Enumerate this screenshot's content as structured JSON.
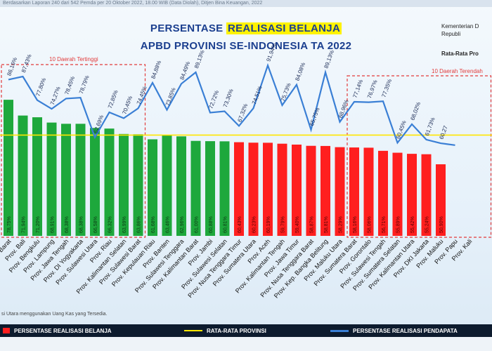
{
  "header": {
    "source_note": "Berdasarkan Laporan 240 dari 542 Pemda per 20 Oktober 2022, 18.00 WIB (Data Diolah), Ditjen Bina Keuangan, 2022",
    "title_prefix": "PERSENTASE ",
    "title_highlight": "REALISASI BELANJA",
    "title_line2": "APBD PROVINSI SE-INDONESIA TA 2022",
    "ministry_line1": "Kementerian D",
    "ministry_line2": "Republi",
    "rata_label": "Rata-Rata Pro"
  },
  "annotations": {
    "top10": "10 Daerah Tertinggi",
    "bottom10": "10 Daerah Terendah"
  },
  "footnote": "si Utara menggunakan Uang Kas yang Tersedia.",
  "legend": {
    "belanja": "PERSENTASE REALISASI BELANJA",
    "rata": "RATA-RATA PROVINSI",
    "pendapatan": "PERSENTASE REALISASI PENDAPATA"
  },
  "colors": {
    "bar_high": "#1ea83c",
    "bar_low": "#ff1f1f",
    "avg_line": "#ffe600",
    "pendapatan_line": "#3a7fd5",
    "dashed_box": "#e23b3b"
  },
  "chart_data": {
    "type": "bar",
    "categories": [
      "Barat",
      "Prov. Bali",
      "Prov. Bengkulu",
      "Prov. Lampung",
      "Prov. Jawa Tengah",
      "Prov. DI Yogyakarta",
      "Prov. Sulawesi Utara",
      "Prov. Riau",
      "Prov. Kalimantan Selatan",
      "Prov. Sulawesi Barat",
      "Prov. Kepulauan Riau",
      "Prov. Banten",
      "Prov. Sulawesi Tenggara",
      "Prov. Kalimantan Barat",
      "Prov. Jambi",
      "Prov. Sulawesi Selatan",
      "Prov. Nusa Tenggara Timur",
      "Prov. Sumatera Utara",
      "Prov. Aceh",
      "Prov. Kalimantan Tengah",
      "Prov. Jawa Timur",
      "Prov. Nusa Tenggara Barat",
      "Prov. Kep. Bangka Belitung",
      "Prov. Maluku Utara",
      "Prov. Sumatera Barat",
      "Prov. Gorontalo",
      "Prov. Sulawesi Tengah",
      "Prov. Sumatera Selatan",
      "Prov. Kalimantan Utara",
      "Prov. DKI Jakarta",
      "Prov. Maluku",
      "Prov. Papu",
      "Prov. Kali"
    ],
    "series": [
      {
        "name": "PERSENTASE REALISASI BELANJA",
        "values": [
          78.75,
          71.94,
          71.2,
          68.91,
          68.38,
          68.38,
          66.58,
          66.32,
          63.99,
          63.86,
          61.68,
          63.46,
          62.96,
          61.0,
          60.88,
          60.81,
          60.43,
          60.23,
          60.19,
          59.79,
          59.4,
          58.87,
          58.81,
          58.29,
          58.16,
          58.06,
          56.71,
          55.89,
          55.42,
          55.24,
          50.9,
          null,
          null
        ],
        "labels": [
          "78,75%",
          "71,94%",
          "71,20%",
          "68,91%",
          "68,38%",
          "68,38%",
          "66,58%",
          "66,32%",
          "63,99%",
          "63,86%",
          "61,68%",
          "63,46%",
          "62,96%",
          "61,00%",
          "60,88%",
          "60,81%",
          "60,43%",
          "60,23%",
          "60,19%",
          "59,79%",
          "59,40%",
          "58,87%",
          "58,81%",
          "58,29%",
          "58,16%",
          "58,06%",
          "56,71%",
          "55,89%",
          "55,42%",
          "55,24%",
          "50,90%",
          "",
          ""
        ]
      },
      {
        "name": "PERSENTASE REALISASI PENDAPATA",
        "values": [
          86.16,
          87.43,
          77.8,
          74.27,
          78.45,
          78.79,
          62.69,
          72.85,
          70.45,
          74.45,
          84.88,
          73.85,
          84.49,
          89.13,
          72.72,
          73.3,
          67.32,
          74.51,
          91.94,
          75.73,
          84.08,
          65.75,
          89.13,
          68.96,
          77.14,
          76.97,
          77.35,
          60.45,
          68.02,
          61.73,
          60.27,
          59.5,
          null
        ],
        "labels": [
          "86,16%",
          "87,43%",
          "77,80%",
          "74,27%",
          "78,45%",
          "78,79%",
          "62,69%",
          "72,85%",
          "70,45%",
          "74,45%",
          "84,88%",
          "73,85%",
          "84,49%",
          "89,13%",
          "72,72%",
          "73,30%",
          "67,32%",
          "74,51%",
          "91,94%",
          "75,73%",
          "84,08%",
          "65,75%",
          "89,13%",
          "68,96%",
          "77,14%",
          "76,97%",
          "77,35%",
          "60,45%",
          "68,02%",
          "61,73%",
          "60,27",
          "",
          ""
        ]
      }
    ],
    "average": 63.5,
    "high_count": 16,
    "ylim": [
      20,
      100
    ],
    "grid": false,
    "legend_position": "bottom"
  }
}
